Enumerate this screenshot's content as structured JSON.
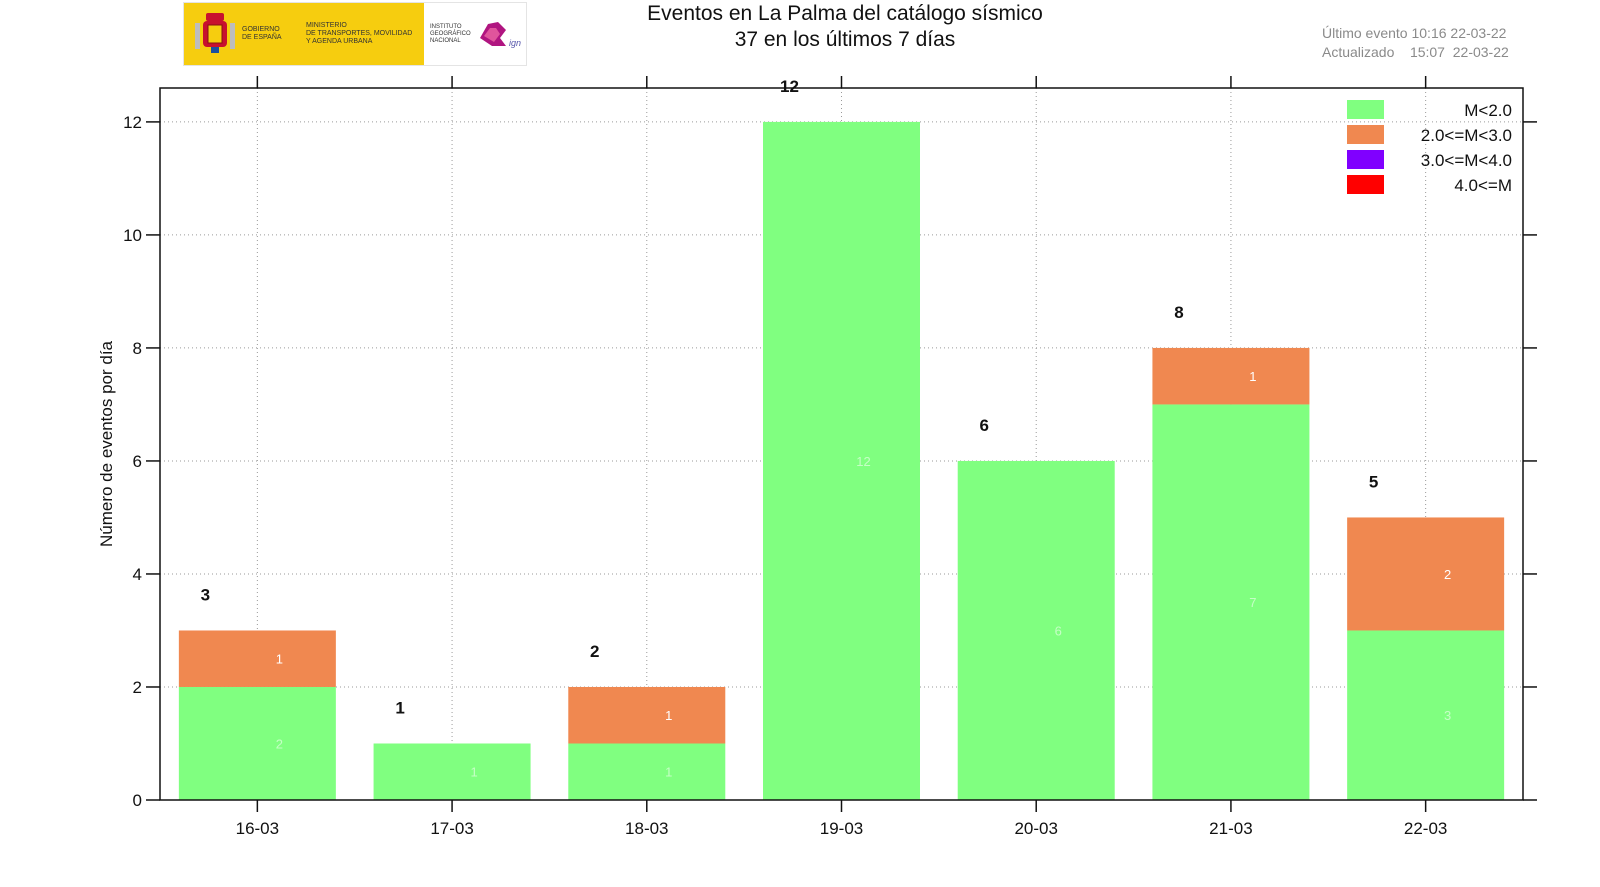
{
  "header": {
    "title_line1": "Eventos en La Palma del catálogo sísmico",
    "title_line2": "37 en los últimos 7 días",
    "last_event": "Último evento 10:16 22-03-22",
    "updated": "Actualizado    15:07  22-03-22"
  },
  "logos": {
    "gobierno": "GOBIERNO\nDE ESPAÑA",
    "ministerio": "MINISTERIO\nDE TRANSPORTES, MOVILIDAD\nY AGENDA URBANA",
    "instituto": "INSTITUTO\nGEOGRÁFICO\nNACIONAL",
    "ign_mark": "ign"
  },
  "colors": {
    "m_lt2": "#80ff80",
    "m_2_3": "#f08850",
    "m_3_4": "#8000ff",
    "m_ge4": "#ff0000"
  },
  "chart_data": {
    "type": "bar",
    "stacked": true,
    "title": "Eventos en La Palma del catálogo sísmico",
    "subtitle": "37 en los últimos 7 días",
    "xlabel": "",
    "ylabel": "Número de eventos por día",
    "categories": [
      "16-03",
      "17-03",
      "18-03",
      "19-03",
      "20-03",
      "21-03",
      "22-03"
    ],
    "series": [
      {
        "name": "M<2.0",
        "color": "#80ff80",
        "values": [
          2,
          1,
          1,
          12,
          6,
          7,
          3
        ]
      },
      {
        "name": "2.0<=M<3.0",
        "color": "#f08850",
        "values": [
          1,
          0,
          1,
          0,
          0,
          1,
          2
        ]
      },
      {
        "name": "3.0<=M<4.0",
        "color": "#8000ff",
        "values": [
          0,
          0,
          0,
          0,
          0,
          0,
          0
        ]
      },
      {
        "name": "4.0<=M",
        "color": "#ff0000",
        "values": [
          0,
          0,
          0,
          0,
          0,
          0,
          0
        ]
      }
    ],
    "totals": [
      3,
      1,
      2,
      12,
      6,
      8,
      5
    ],
    "ylim": [
      0,
      12.6
    ],
    "yticks": [
      0,
      2,
      4,
      6,
      8,
      10,
      12
    ],
    "grid": true,
    "legend_position": "top-right"
  }
}
